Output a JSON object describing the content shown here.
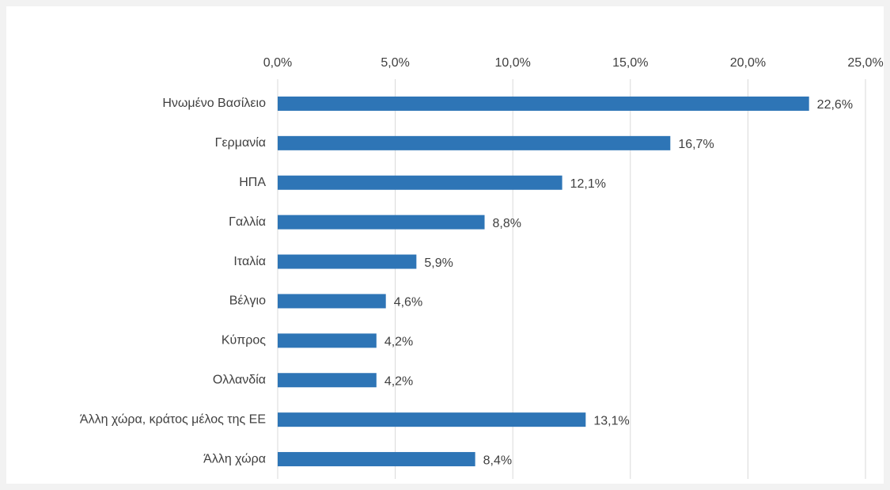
{
  "chart_data": {
    "type": "bar",
    "orientation": "horizontal",
    "categories": [
      "Ηνωμένο Βασίλειο",
      "Γερμανία",
      "ΗΠΑ",
      "Γαλλία",
      "Ιταλία",
      "Βέλγιο",
      "Κύπρος",
      "Ολλανδία",
      "Άλλη χώρα, κράτος μέλος της ΕΕ",
      "Άλλη χώρα"
    ],
    "values": [
      22.6,
      16.7,
      12.1,
      8.8,
      5.9,
      4.6,
      4.2,
      4.2,
      13.1,
      8.4
    ],
    "value_labels": [
      "22,6%",
      "16,7%",
      "12,1%",
      "8,8%",
      "5,9%",
      "4,6%",
      "4,2%",
      "4,2%",
      "13,1%",
      "8,4%"
    ],
    "color": "#2e75b6",
    "xlim": [
      0,
      25
    ],
    "xticks": [
      {
        "value": 0,
        "label": "0,0%"
      },
      {
        "value": 5,
        "label": "5,0%"
      },
      {
        "value": 10,
        "label": "10,0%"
      },
      {
        "value": 15,
        "label": "15,0%"
      },
      {
        "value": 20,
        "label": "20,0%"
      },
      {
        "value": 25,
        "label": "25,0%"
      }
    ],
    "grid": true
  }
}
